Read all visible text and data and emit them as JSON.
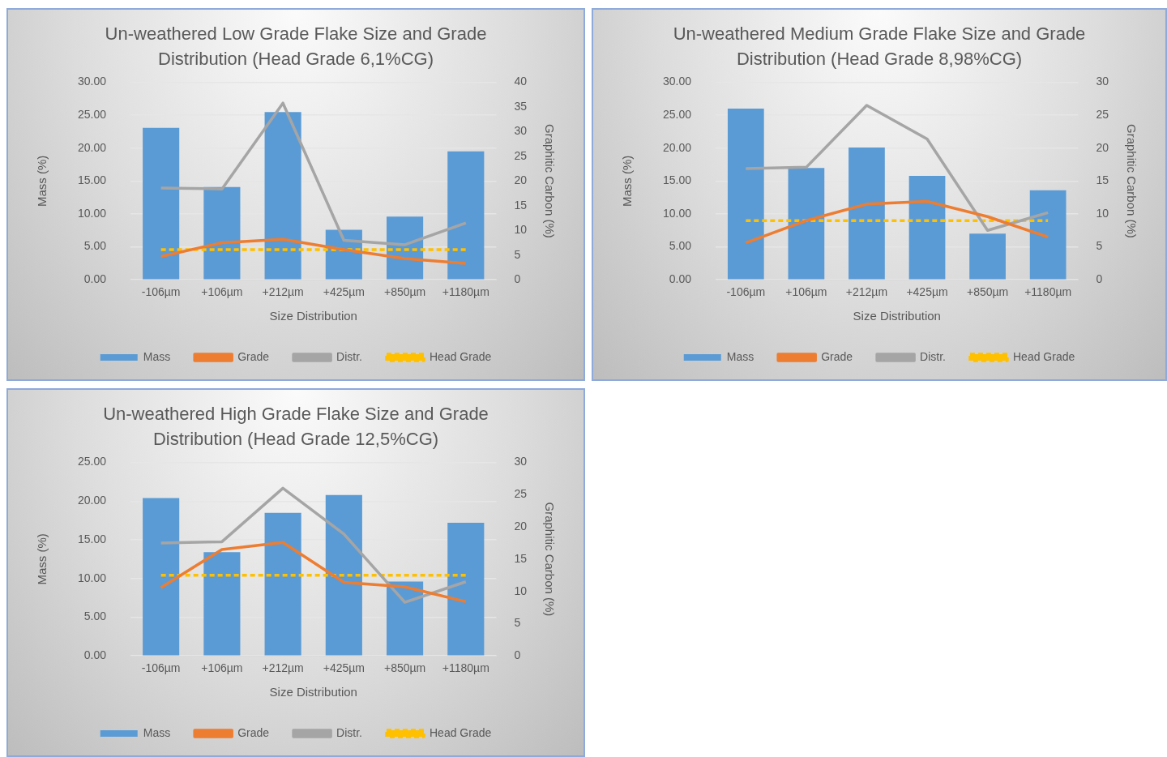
{
  "chart_data": [
    {
      "type": "bar",
      "title": "Un-weathered Low Grade Flake Size and Grade Distribution (Head Grade 6,1%CG)",
      "xlabel": "Size Distribution",
      "ylabel": "Mass (%)",
      "y2label": "Graphitic Carbon (%)",
      "categories": [
        "-106µm",
        "+106µm",
        "+212µm",
        "+425µm",
        "+850µm",
        "+1180µm"
      ],
      "series": [
        {
          "name": "Mass",
          "color": "#5b9bd5",
          "values": [
            23.1,
            14.1,
            25.5,
            7.6,
            9.6,
            19.5
          ]
        },
        {
          "name": "Grade",
          "type": "line",
          "axis": "y2",
          "color": "#ed7d31",
          "values": [
            4.7,
            7.5,
            8.2,
            6.1,
            4.3,
            3.3
          ]
        },
        {
          "name": "Distr.",
          "type": "line",
          "axis": "y2",
          "color": "#a5a5a5",
          "values": [
            18.6,
            18.4,
            35.8,
            8.0,
            7.1,
            11.5
          ]
        },
        {
          "name": "Head Grade",
          "type": "line",
          "axis": "y2",
          "color": "#ffc000",
          "line_style": "dashed",
          "values": [
            6.1,
            6.1,
            6.1,
            6.1,
            6.1,
            6.1
          ]
        }
      ],
      "ylim": [
        0,
        30
      ],
      "yticks": [
        {
          "value": 0,
          "label": "0.00"
        },
        {
          "value": 5,
          "label": "5.00"
        },
        {
          "value": 10,
          "label": "10.00"
        },
        {
          "value": 15,
          "label": "15.00"
        },
        {
          "value": 20,
          "label": "20.00"
        },
        {
          "value": 25,
          "label": "25.00"
        },
        {
          "value": 30,
          "label": "30.00"
        }
      ],
      "y2lim": [
        0,
        40
      ],
      "y2ticks": [
        0,
        5,
        10,
        15,
        20,
        25,
        30,
        35,
        40
      ],
      "grid": "y",
      "legend": "bottom"
    },
    {
      "type": "bar",
      "title": "Un-weathered Medium Grade Flake Size and Grade Distribution (Head Grade 8,98%CG)",
      "xlabel": "Size Distribution",
      "ylabel": "Mass (%)",
      "y2label": "Graphitic Carbon (%)",
      "categories": [
        "-106µm",
        "+106µm",
        "+212µm",
        "+425µm",
        "+850µm",
        "+1180µm"
      ],
      "series": [
        {
          "name": "Mass",
          "color": "#5b9bd5",
          "values": [
            26.0,
            17.0,
            20.1,
            15.8,
            7.0,
            13.6
          ]
        },
        {
          "name": "Grade",
          "type": "line",
          "axis": "y2",
          "color": "#ed7d31",
          "values": [
            5.6,
            9.0,
            11.5,
            11.9,
            9.6,
            6.5
          ]
        },
        {
          "name": "Distr.",
          "type": "line",
          "axis": "y2",
          "color": "#a5a5a5",
          "values": [
            16.9,
            17.1,
            26.5,
            21.4,
            7.5,
            10.2
          ]
        },
        {
          "name": "Head Grade",
          "type": "line",
          "axis": "y2",
          "color": "#ffc000",
          "line_style": "dashed",
          "values": [
            8.98,
            8.98,
            8.98,
            8.98,
            8.98,
            8.98
          ]
        }
      ],
      "ylim": [
        0,
        30
      ],
      "yticks": [
        {
          "value": 0,
          "label": "0.00"
        },
        {
          "value": 5,
          "label": "5.00"
        },
        {
          "value": 10,
          "label": "10.00"
        },
        {
          "value": 15,
          "label": "15.00"
        },
        {
          "value": 20,
          "label": "20.00"
        },
        {
          "value": 25,
          "label": "25.00"
        },
        {
          "value": 30,
          "label": "30.00"
        }
      ],
      "y2lim": [
        0,
        30
      ],
      "y2ticks": [
        0,
        5,
        10,
        15,
        20,
        25,
        30
      ],
      "grid": "y",
      "legend": "bottom"
    },
    {
      "type": "bar",
      "title": "Un-weathered High Grade Flake Size and Grade Distribution (Head Grade 12,5%CG)",
      "xlabel": "Size Distribution",
      "ylabel": "Mass (%)",
      "y2label": "Graphitic Carbon (%)",
      "categories": [
        "-106µm",
        "+106µm",
        "+212µm",
        "+425µm",
        "+850µm",
        "+1180µm"
      ],
      "series": [
        {
          "name": "Mass",
          "color": "#5b9bd5",
          "values": [
            20.4,
            13.4,
            18.5,
            20.8,
            9.6,
            17.2
          ]
        },
        {
          "name": "Grade",
          "type": "line",
          "axis": "y2",
          "color": "#ed7d31",
          "values": [
            10.6,
            16.5,
            17.6,
            11.4,
            10.7,
            8.4
          ]
        },
        {
          "name": "Distr.",
          "type": "line",
          "axis": "y2",
          "color": "#a5a5a5",
          "values": [
            17.5,
            17.7,
            26.0,
            18.9,
            8.3,
            11.5
          ]
        },
        {
          "name": "Head Grade",
          "type": "line",
          "axis": "y2",
          "color": "#ffc000",
          "line_style": "dashed",
          "values": [
            12.5,
            12.5,
            12.5,
            12.5,
            12.5,
            12.5
          ]
        }
      ],
      "ylim": [
        0,
        25
      ],
      "yticks": [
        {
          "value": 0,
          "label": "0.00"
        },
        {
          "value": 5,
          "label": "5.00"
        },
        {
          "value": 10,
          "label": "10.00"
        },
        {
          "value": 15,
          "label": "15.00"
        },
        {
          "value": 20,
          "label": "20.00"
        },
        {
          "value": 25,
          "label": "25.00"
        }
      ],
      "y2lim": [
        0,
        30
      ],
      "y2ticks": [
        0,
        5,
        10,
        15,
        20,
        25,
        30
      ],
      "grid": "y",
      "legend": "bottom"
    }
  ]
}
